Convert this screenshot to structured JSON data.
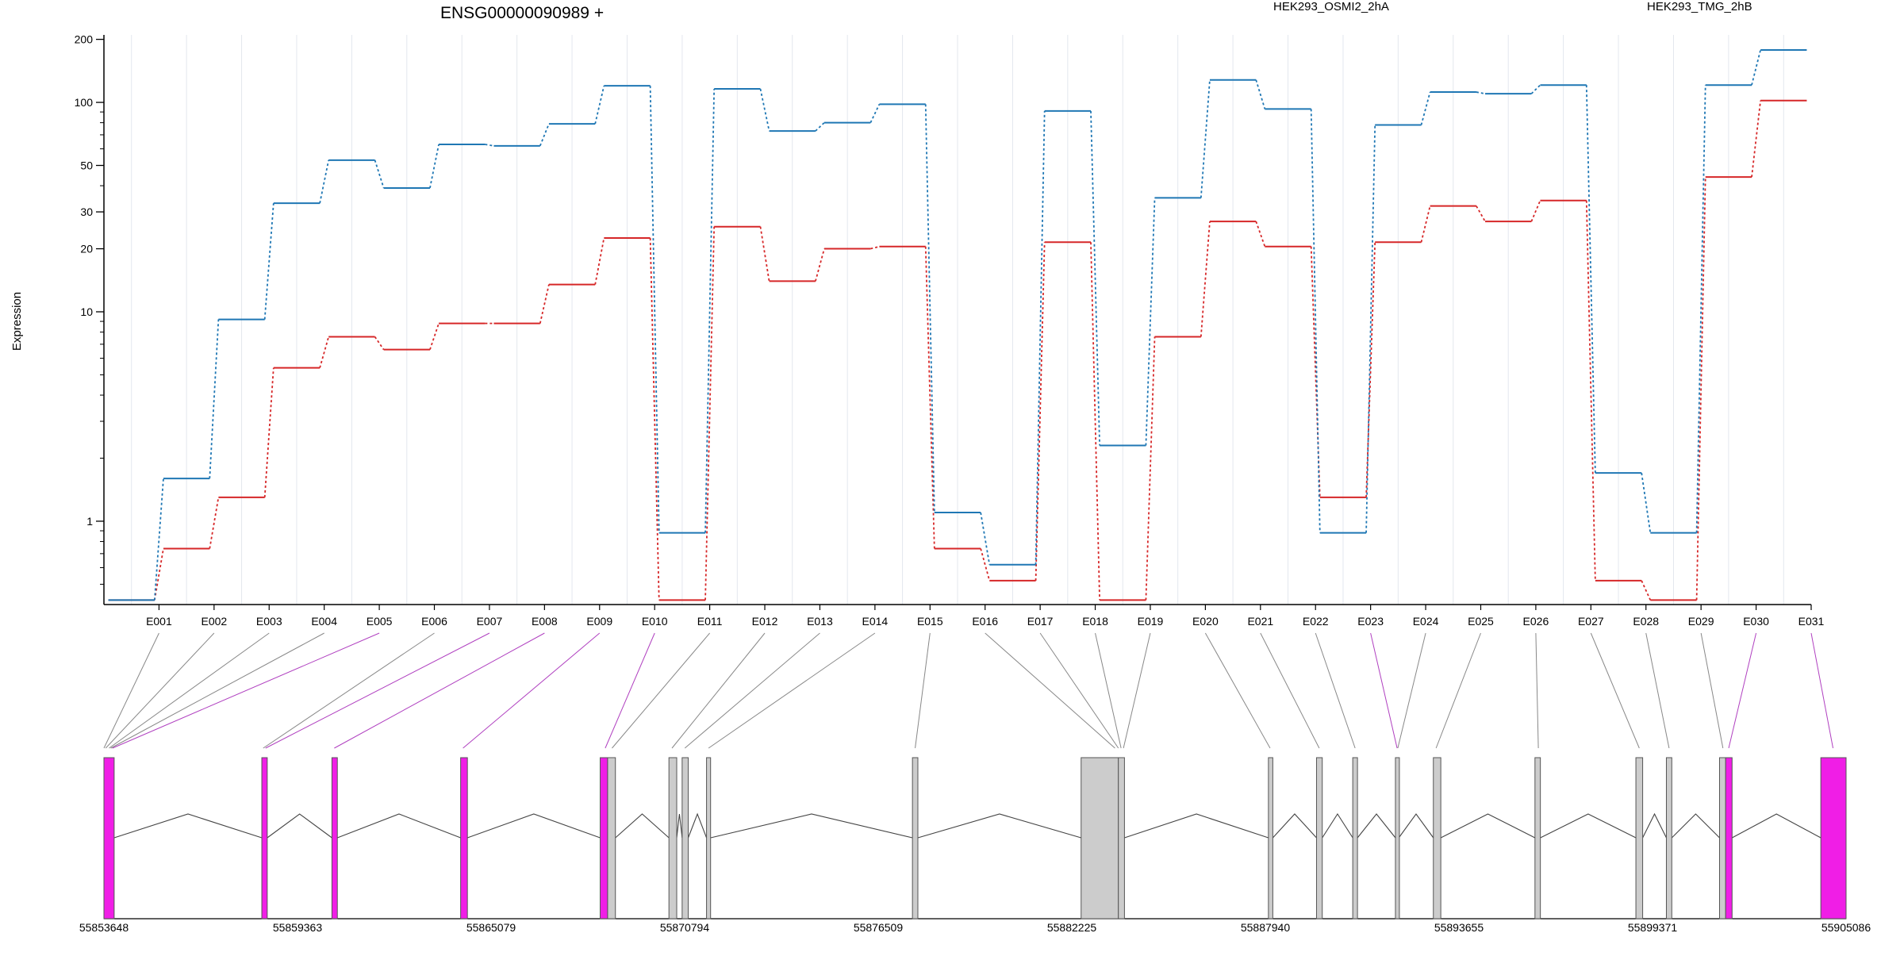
{
  "chart_data": {
    "type": "line",
    "title": "ENSG00000090989 +",
    "ylabel": "Expression",
    "xlabel": "",
    "yscale": "log",
    "ylim": [
      0.4,
      210
    ],
    "yticks": [
      1,
      10,
      20,
      30,
      50,
      100,
      200
    ],
    "grid": true,
    "legend": "top",
    "categories": [
      "E001",
      "E002",
      "E003",
      "E004",
      "E005",
      "E006",
      "E007",
      "E008",
      "E009",
      "E010",
      "E011",
      "E012",
      "E013",
      "E014",
      "E015",
      "E016",
      "E017",
      "E018",
      "E019",
      "E020",
      "E021",
      "E022",
      "E023",
      "E024",
      "E025",
      "E026",
      "E027",
      "E028",
      "E029",
      "E030",
      "E031"
    ],
    "series": [
      {
        "name": "HEK293_OSMI2_2hA",
        "color": "#d62728",
        "values": [
          0.42,
          0.74,
          1.3,
          5.4,
          7.6,
          6.6,
          8.8,
          8.8,
          13.5,
          22.5,
          0.42,
          25.5,
          14,
          20,
          20.5,
          0.74,
          0.52,
          21.5,
          0.42,
          7.6,
          27,
          20.5,
          1.3,
          21.5,
          32,
          27,
          34,
          0.52,
          0.42,
          44,
          102
        ]
      },
      {
        "name": "HEK293_TMG_2hB",
        "color": "#1f77b4",
        "values": [
          0.42,
          1.6,
          9.2,
          33,
          53,
          39,
          63,
          62,
          79,
          120,
          0.88,
          116,
          73,
          80,
          98,
          1.1,
          0.62,
          91,
          2.3,
          35,
          128,
          93,
          0.88,
          78,
          112,
          110,
          121,
          1.7,
          0.88,
          121,
          178
        ]
      }
    ],
    "gene_model": {
      "coordinates": [
        "55853648",
        "55859363",
        "55865079",
        "55870794",
        "55876509",
        "55882225",
        "55887940",
        "55893655",
        "55899371",
        "55905086"
      ],
      "range": [
        55853648,
        55905086
      ],
      "exons": [
        {
          "start": 55853648,
          "end": 55853950,
          "highlight": true
        },
        {
          "start": 55858310,
          "end": 55858470,
          "highlight": true
        },
        {
          "start": 55860380,
          "end": 55860540,
          "highlight": true
        },
        {
          "start": 55864180,
          "end": 55864380,
          "highlight": true
        },
        {
          "start": 55868300,
          "end": 55868520,
          "highlight": true
        },
        {
          "start": 55868520,
          "end": 55868750,
          "highlight": false
        },
        {
          "start": 55870330,
          "end": 55870560,
          "highlight": false
        },
        {
          "start": 55870720,
          "end": 55870900,
          "highlight": false
        },
        {
          "start": 55871440,
          "end": 55871560,
          "highlight": false
        },
        {
          "start": 55877520,
          "end": 55877680,
          "highlight": false
        },
        {
          "start": 55882500,
          "end": 55883600,
          "highlight": false
        },
        {
          "start": 55883600,
          "end": 55883780,
          "highlight": false
        },
        {
          "start": 55888030,
          "end": 55888160,
          "highlight": false
        },
        {
          "start": 55889450,
          "end": 55889620,
          "highlight": false
        },
        {
          "start": 55890520,
          "end": 55890660,
          "highlight": false
        },
        {
          "start": 55891780,
          "end": 55891880,
          "highlight": false
        },
        {
          "start": 55892900,
          "end": 55893120,
          "highlight": false
        },
        {
          "start": 55895900,
          "end": 55896060,
          "highlight": false
        },
        {
          "start": 55898880,
          "end": 55899080,
          "highlight": false
        },
        {
          "start": 55899780,
          "end": 55899940,
          "highlight": false
        },
        {
          "start": 55901350,
          "end": 55901530,
          "highlight": false
        },
        {
          "start": 55901530,
          "end": 55901720,
          "highlight": true
        },
        {
          "start": 55904340,
          "end": 55905086,
          "highlight": true
        }
      ],
      "exon_bin_positions": [
        55853648,
        55853700,
        55853800,
        55853850,
        55853900,
        55858350,
        55858420,
        55860450,
        55864250,
        55868450,
        55868650,
        55870420,
        55870800,
        55871500,
        55877600,
        55883500,
        55883600,
        55883680,
        55883750,
        55888080,
        55889530,
        55890590,
        55891830,
        55891850,
        55892980,
        55896000,
        55898980,
        55899860,
        55901450,
        55901620,
        55904700
      ],
      "exon_bin_highlight": [
        false,
        false,
        false,
        false,
        true,
        false,
        true,
        true,
        true,
        true,
        false,
        false,
        false,
        false,
        false,
        false,
        false,
        false,
        false,
        false,
        false,
        false,
        true,
        false,
        false,
        false,
        false,
        false,
        false,
        true,
        true
      ]
    }
  }
}
